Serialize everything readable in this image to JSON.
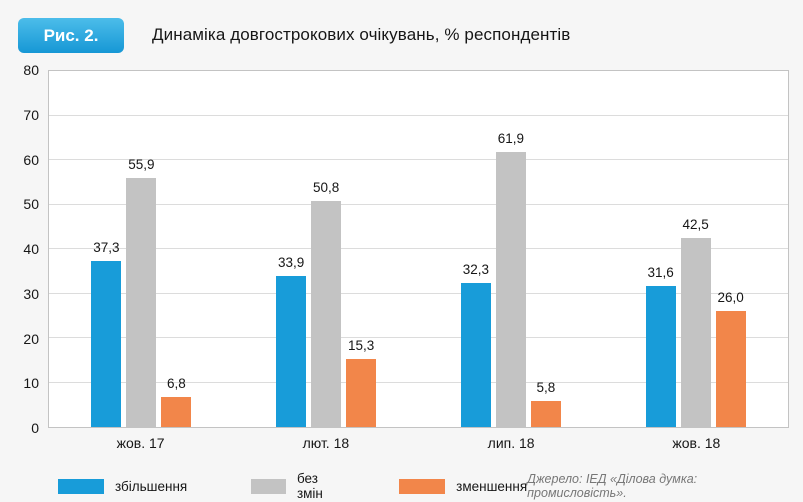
{
  "figure_label": "Рис. 2.",
  "title": "Динаміка довгострокових очікувань, % респондентів",
  "source": "Джерело: ІЕД «Ділова думка: промисловість».",
  "colors": {
    "badge": "#1697d5",
    "blue": "#189cd9",
    "gray": "#c3c3c3",
    "orange": "#f2864a"
  },
  "chart_data": {
    "type": "bar",
    "categories": [
      "жов. 17",
      "лют. 18",
      "лип. 18",
      "жов. 18"
    ],
    "series": [
      {
        "name": "збільшення",
        "color_key": "blue",
        "values": [
          37.3,
          33.9,
          32.3,
          31.6
        ]
      },
      {
        "name": "без змін",
        "color_key": "gray",
        "values": [
          55.9,
          50.8,
          61.9,
          42.5
        ]
      },
      {
        "name": "зменшення",
        "color_key": "orange",
        "values": [
          6.8,
          15.3,
          5.8,
          26.0
        ]
      }
    ],
    "title": "Динаміка довгострокових очікувань, % респондентів",
    "xlabel": "",
    "ylabel": "",
    "ylim": [
      0,
      80
    ],
    "ytick_step": 10,
    "grid": true,
    "legend_position": "bottom",
    "value_decimal_separator": ","
  }
}
